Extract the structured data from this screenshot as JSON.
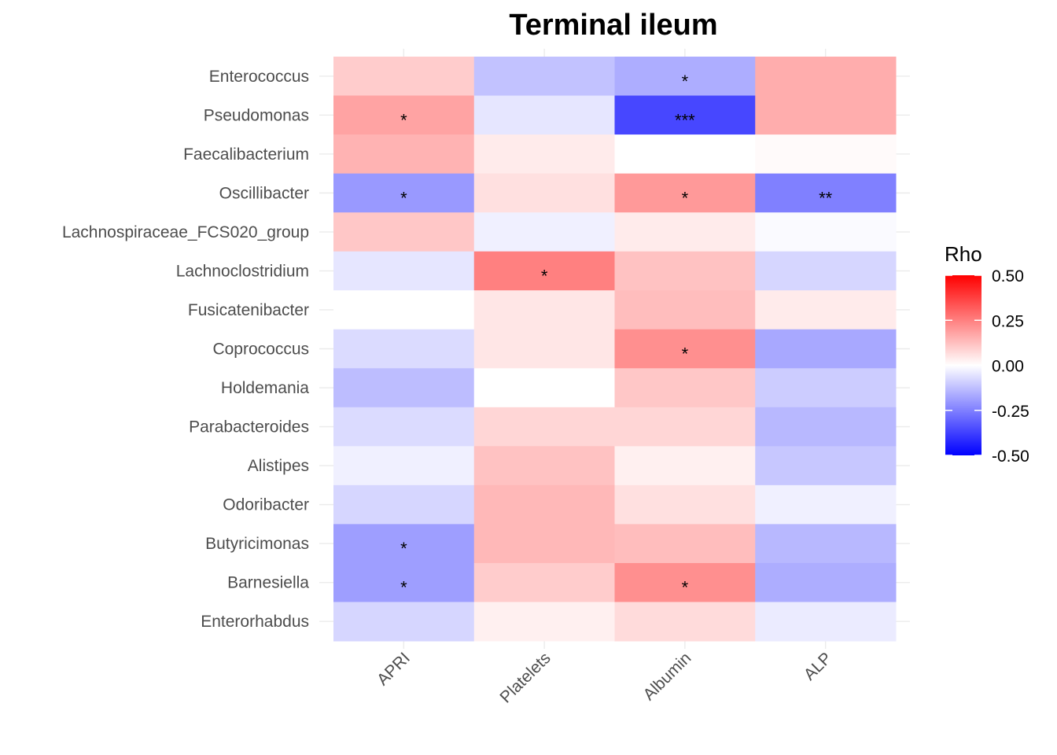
{
  "chart_data": {
    "type": "heatmap",
    "title": "Terminal ileum",
    "xlabel": "",
    "ylabel": "",
    "categories_x": [
      "APRI",
      "Platelets",
      "Albumin",
      "ALP"
    ],
    "categories_y": [
      "Enterococcus",
      "Pseudomonas",
      "Faecalibacterium",
      "Oscillibacter",
      "Lachnospiraceae_FCS020_group",
      "Lachnoclostridium",
      "Fusicatenibacter",
      "Coprococcus",
      "Holdemania",
      "Parabacteroides",
      "Alistipes",
      "Odoribacter",
      "Butyricimonas",
      "Barnesiella",
      "Enterorhabdus"
    ],
    "values": [
      [
        0.1,
        -0.12,
        -0.16,
        0.16
      ],
      [
        0.18,
        -0.05,
        -0.36,
        0.16
      ],
      [
        0.15,
        0.04,
        0.0,
        0.01
      ],
      [
        -0.2,
        0.06,
        0.2,
        -0.25
      ],
      [
        0.11,
        -0.03,
        0.04,
        -0.01
      ],
      [
        -0.05,
        0.25,
        0.12,
        -0.08
      ],
      [
        0.0,
        0.05,
        0.13,
        0.04
      ],
      [
        -0.07,
        0.05,
        0.22,
        -0.17
      ],
      [
        -0.13,
        0.0,
        0.11,
        -0.1
      ],
      [
        -0.07,
        0.08,
        0.08,
        -0.14
      ],
      [
        -0.03,
        0.12,
        0.03,
        -0.11
      ],
      [
        -0.08,
        0.14,
        0.06,
        -0.03
      ],
      [
        -0.19,
        0.14,
        0.13,
        -0.14
      ],
      [
        -0.19,
        0.1,
        0.22,
        -0.16
      ],
      [
        -0.08,
        0.03,
        0.07,
        -0.04
      ]
    ],
    "labels": [
      [
        "",
        "",
        "*",
        ""
      ],
      [
        "*",
        "",
        "***",
        ""
      ],
      [
        "",
        "",
        "",
        ""
      ],
      [
        "*",
        "",
        "*",
        "**"
      ],
      [
        "",
        "",
        "",
        ""
      ],
      [
        "",
        "*",
        "",
        ""
      ],
      [
        "",
        "",
        "",
        ""
      ],
      [
        "",
        "",
        "*",
        ""
      ],
      [
        "",
        "",
        "",
        ""
      ],
      [
        "",
        "",
        "",
        ""
      ],
      [
        "",
        "",
        "",
        ""
      ],
      [
        "",
        "",
        "",
        ""
      ],
      [
        "*",
        "",
        "",
        ""
      ],
      [
        "*",
        "",
        "*",
        ""
      ],
      [
        "",
        "",
        "",
        ""
      ]
    ],
    "legend": {
      "title": "Rho",
      "position": "right",
      "limits": [
        -0.5,
        0.5
      ],
      "breaks": [
        0.5,
        0.25,
        0.0,
        -0.25,
        -0.5
      ],
      "break_labels": [
        "0.50",
        "0.25",
        "0.00",
        "-0.25",
        "-0.50"
      ],
      "low_color": "#0000ff",
      "mid_color": "#ffffff",
      "high_color": "#ff0000"
    },
    "grid": true
  }
}
